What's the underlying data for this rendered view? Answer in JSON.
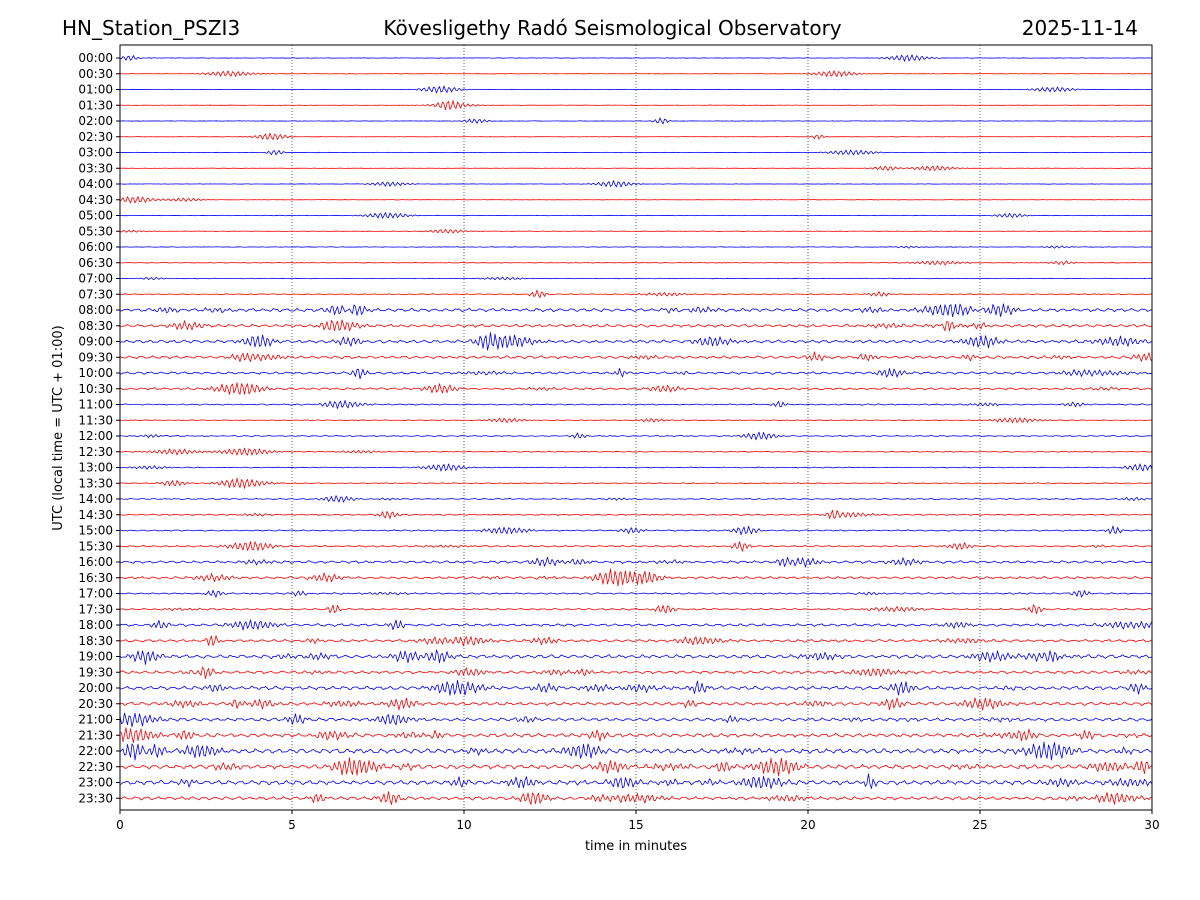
{
  "header": {
    "station": "HN_Station_PSZI3",
    "title": "Kövesligethy Radó Seismological Observatory",
    "date": "2025-11-14"
  },
  "chart_data": {
    "type": "line",
    "subtype": "helicorder",
    "title": "Kövesligethy Radó Seismological Observatory",
    "xlabel": "time in minutes",
    "ylabel": "UTC (local time = UTC + 01:00)",
    "xlim": [
      0,
      30
    ],
    "xticks": [
      0,
      5,
      10,
      15,
      20,
      25,
      30
    ],
    "xtick_labels": [
      "0",
      "5",
      "10",
      "15",
      "20",
      "25",
      "30"
    ],
    "grid": "vertical dotted lines at each x tick",
    "colors": [
      "#0000ff",
      "#ff0000"
    ],
    "rows": [
      {
        "label": "00:00",
        "activity": 0.03
      },
      {
        "label": "00:30",
        "activity": 0.03
      },
      {
        "label": "01:00",
        "activity": 0.02
      },
      {
        "label": "01:30",
        "activity": 0.02
      },
      {
        "label": "02:00",
        "activity": 0.02
      },
      {
        "label": "02:30",
        "activity": 0.02
      },
      {
        "label": "03:00",
        "activity": 0.02
      },
      {
        "label": "03:30",
        "activity": 0.02
      },
      {
        "label": "04:00",
        "activity": 0.02
      },
      {
        "label": "04:30",
        "activity": 0.02
      },
      {
        "label": "05:00",
        "activity": 0.04
      },
      {
        "label": "05:30",
        "activity": 0.04
      },
      {
        "label": "06:00",
        "activity": 0.05
      },
      {
        "label": "06:30",
        "activity": 0.06
      },
      {
        "label": "07:00",
        "activity": 0.05
      },
      {
        "label": "07:30",
        "activity": 0.12
      },
      {
        "label": "08:00",
        "activity": 0.45
      },
      {
        "label": "08:30",
        "activity": 0.4
      },
      {
        "label": "09:00",
        "activity": 0.42
      },
      {
        "label": "09:30",
        "activity": 0.38
      },
      {
        "label": "10:00",
        "activity": 0.32
      },
      {
        "label": "10:30",
        "activity": 0.28
      },
      {
        "label": "11:00",
        "activity": 0.15
      },
      {
        "label": "11:30",
        "activity": 0.08
      },
      {
        "label": "12:00",
        "activity": 0.12
      },
      {
        "label": "12:30",
        "activity": 0.1
      },
      {
        "label": "13:00",
        "activity": 0.1
      },
      {
        "label": "13:30",
        "activity": 0.1
      },
      {
        "label": "14:00",
        "activity": 0.14
      },
      {
        "label": "14:30",
        "activity": 0.16
      },
      {
        "label": "15:00",
        "activity": 0.16
      },
      {
        "label": "15:30",
        "activity": 0.2
      },
      {
        "label": "16:00",
        "activity": 0.35
      },
      {
        "label": "16:30",
        "activity": 0.33
      },
      {
        "label": "17:00",
        "activity": 0.2
      },
      {
        "label": "17:30",
        "activity": 0.22
      },
      {
        "label": "18:00",
        "activity": 0.35
      },
      {
        "label": "18:30",
        "activity": 0.35
      },
      {
        "label": "19:00",
        "activity": 0.5
      },
      {
        "label": "19:30",
        "activity": 0.4
      },
      {
        "label": "20:00",
        "activity": 0.5
      },
      {
        "label": "20:30",
        "activity": 0.45
      },
      {
        "label": "21:00",
        "activity": 0.45
      },
      {
        "label": "21:30",
        "activity": 0.5
      },
      {
        "label": "22:00",
        "activity": 0.65
      },
      {
        "label": "22:30",
        "activity": 0.6
      },
      {
        "label": "23:00",
        "activity": 0.6
      },
      {
        "label": "23:30",
        "activity": 0.45
      }
    ]
  }
}
